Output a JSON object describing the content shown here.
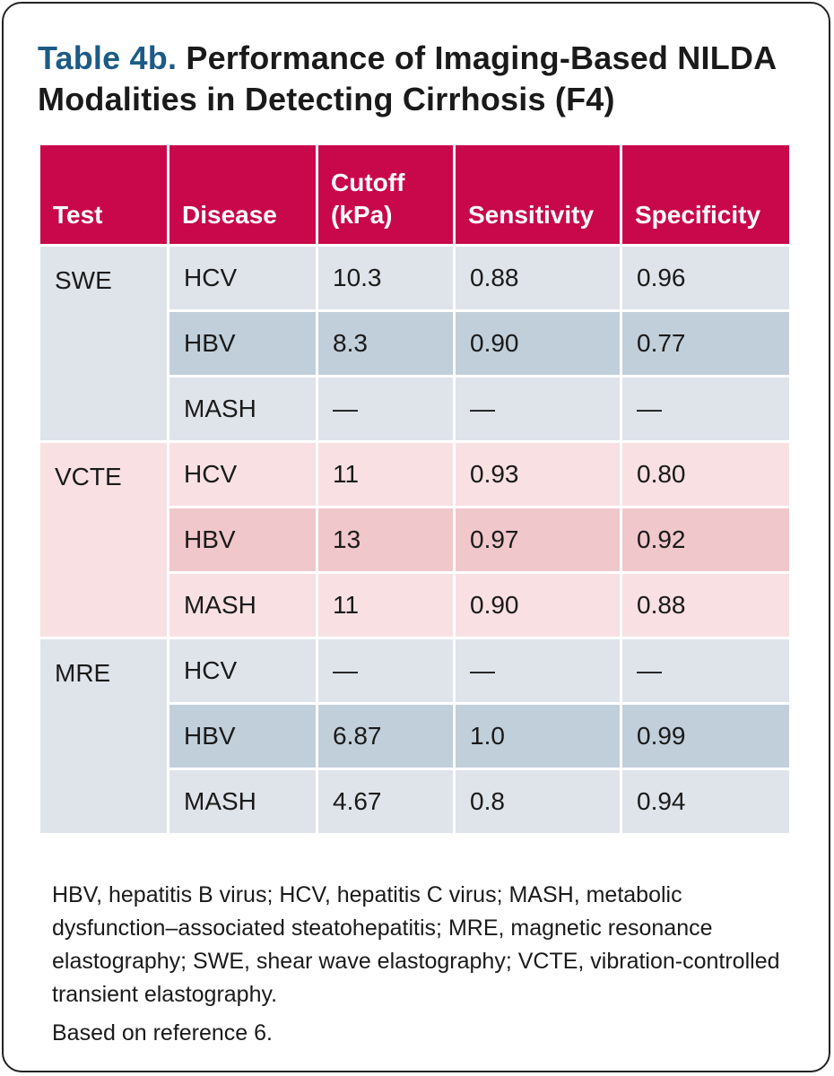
{
  "title": {
    "label": "Table 4b.",
    "text": "Performance of Imaging-Based NILDA Modalities in Detecting Cirrhosis (F4)"
  },
  "table": {
    "headers": [
      "Test",
      "Disease",
      "Cutoff (kPa)",
      "Sensitivity",
      "Specificity"
    ],
    "groups": [
      {
        "test": "SWE",
        "rows": [
          {
            "disease": "HCV",
            "cutoff": "10.3",
            "sensitivity": "0.88",
            "specificity": "0.96"
          },
          {
            "disease": "HBV",
            "cutoff": "8.3",
            "sensitivity": "0.90",
            "specificity": "0.77"
          },
          {
            "disease": "MASH",
            "cutoff": "—",
            "sensitivity": "—",
            "specificity": "—"
          }
        ]
      },
      {
        "test": "VCTE",
        "rows": [
          {
            "disease": "HCV",
            "cutoff": "11",
            "sensitivity": "0.93",
            "specificity": "0.80"
          },
          {
            "disease": "HBV",
            "cutoff": "13",
            "sensitivity": "0.97",
            "specificity": "0.92"
          },
          {
            "disease": "MASH",
            "cutoff": "11",
            "sensitivity": "0.90",
            "specificity": "0.88"
          }
        ]
      },
      {
        "test": "MRE",
        "rows": [
          {
            "disease": "HCV",
            "cutoff": "—",
            "sensitivity": "—",
            "specificity": "—"
          },
          {
            "disease": "HBV",
            "cutoff": "6.87",
            "sensitivity": "1.0",
            "specificity": "0.99"
          },
          {
            "disease": "MASH",
            "cutoff": "4.67",
            "sensitivity": "0.8",
            "specificity": "0.94"
          }
        ]
      }
    ]
  },
  "footnote": "HBV, hepatitis B virus; HCV, hepatitis C virus; MASH, metabolic dysfunction–associated steatohepatitis; MRE, magnetic resonance elastography; SWE, shear wave elastography; VCTE, vibration-controlled transient elastography.",
  "reference": "Based on reference 6.",
  "colors": {
    "title_label": "#1d5b86",
    "header_bg": "#c8084a",
    "group_blue": "#dfe4eb",
    "group_blue_alt": "#c1cfdb",
    "group_pink": "#f8e0e3",
    "group_pink_alt": "#f0c7cb"
  }
}
